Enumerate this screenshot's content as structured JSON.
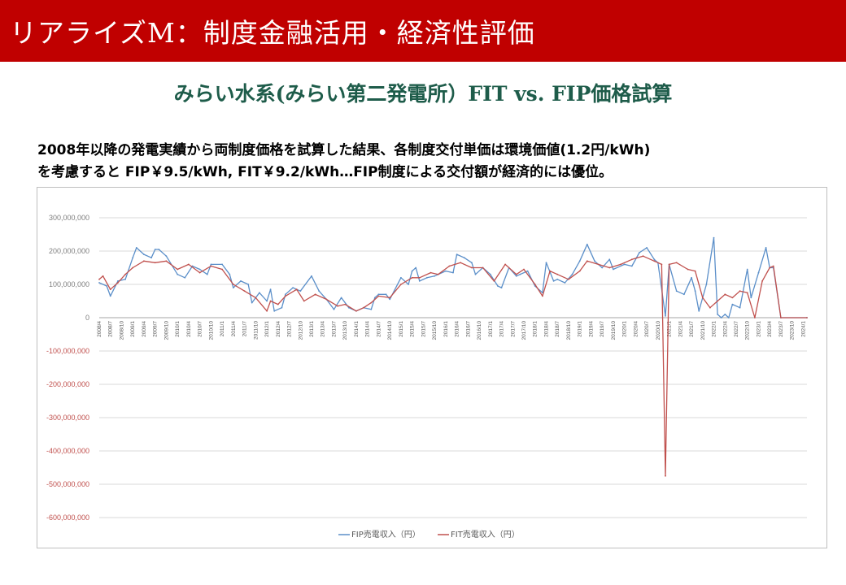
{
  "header": {
    "title": "リアライズM：制度金融活用・経済性評価"
  },
  "subtitle": "みらい水系(みらい第二発電所）FIT vs. FIP価格試算",
  "description": {
    "line1": "2008年以降の発電実績から両制度価格を試算した結果、各制度交付単価は環境価値(1.2円/kWh)",
    "line2": "を考慮すると FIP￥9.5/kWh, FIT￥9.2/kWh…FIP制度による交付額が経済的には優位。"
  },
  "colors": {
    "header_bg": "#c00000",
    "subtitle": "#1e5c4a",
    "fip": "#5b8fc9",
    "fit": "#c0504d",
    "negative_tick": "#c0504d",
    "positive_tick": "#7f7f7f"
  },
  "chart_data": {
    "type": "line",
    "title": "",
    "xlabel": "",
    "ylabel": "",
    "ylim": [
      -600000000,
      300000000
    ],
    "yticks": [
      300000000,
      200000000,
      100000000,
      0,
      -100000000,
      -200000000,
      -300000000,
      -400000000,
      -500000000,
      -600000000
    ],
    "ytick_labels": [
      "300,000,000",
      "200,000,000",
      "100,000,000",
      "0",
      "-100,000,000",
      "-200,000,000",
      "-300,000,000",
      "-400,000,000",
      "-500,000,000",
      "-600,000,000"
    ],
    "x_start": "2008/4",
    "x_end": "2024/2",
    "xtick_labels": [
      "2008/4",
      "2008/7",
      "2008/10",
      "2009/1",
      "2009/4",
      "2009/7",
      "2009/10",
      "2010/1",
      "2010/4",
      "2010/7",
      "2010/10",
      "2011/1",
      "2011/4",
      "2011/7",
      "2011/10",
      "2012/1",
      "2012/4",
      "2012/7",
      "2012/10",
      "2013/1",
      "2013/4",
      "2013/7",
      "2013/10",
      "2014/1",
      "2014/4",
      "2014/7",
      "2014/10",
      "2015/1",
      "2015/4",
      "2015/7",
      "2015/10",
      "2016/1",
      "2016/4",
      "2016/7",
      "2016/10",
      "2017/1",
      "2017/4",
      "2017/7",
      "2017/10",
      "2018/1",
      "2018/4",
      "2018/7",
      "2018/10",
      "2019/1",
      "2019/4",
      "2019/7",
      "2019/10",
      "2020/1",
      "2020/4",
      "2020/7",
      "2020/10",
      "2021/1",
      "2021/4",
      "2021/7",
      "2021/10",
      "2022/1",
      "2022/4",
      "2022/7",
      "2022/10",
      "2023/1",
      "2023/4",
      "2023/7",
      "2023/10",
      "2024/1"
    ],
    "grid": true,
    "legend": "bottom",
    "series": [
      {
        "name": "FIP売電収入（円）",
        "color": "#5b8fc9",
        "points": [
          [
            "2008/4",
            105000000
          ],
          [
            "2008/6",
            95000000
          ],
          [
            "2008/7",
            65000000
          ],
          [
            "2008/9",
            110000000
          ],
          [
            "2008/11",
            115000000
          ],
          [
            "2009/1",
            180000000
          ],
          [
            "2009/2",
            210000000
          ],
          [
            "2009/4",
            190000000
          ],
          [
            "2009/6",
            180000000
          ],
          [
            "2009/7",
            205000000
          ],
          [
            "2009/8",
            205000000
          ],
          [
            "2009/10",
            185000000
          ],
          [
            "2010/1",
            130000000
          ],
          [
            "2010/3",
            120000000
          ],
          [
            "2010/5",
            155000000
          ],
          [
            "2010/7",
            145000000
          ],
          [
            "2010/9",
            130000000
          ],
          [
            "2010/10",
            160000000
          ],
          [
            "2011/1",
            160000000
          ],
          [
            "2011/3",
            130000000
          ],
          [
            "2011/4",
            90000000
          ],
          [
            "2011/6",
            110000000
          ],
          [
            "2011/8",
            100000000
          ],
          [
            "2011/9",
            45000000
          ],
          [
            "2011/11",
            75000000
          ],
          [
            "2012/1",
            50000000
          ],
          [
            "2012/2",
            85000000
          ],
          [
            "2012/3",
            20000000
          ],
          [
            "2012/5",
            30000000
          ],
          [
            "2012/6",
            70000000
          ],
          [
            "2012/8",
            90000000
          ],
          [
            "2012/10",
            80000000
          ],
          [
            "2013/1",
            125000000
          ],
          [
            "2013/3",
            80000000
          ],
          [
            "2013/5",
            55000000
          ],
          [
            "2013/7",
            25000000
          ],
          [
            "2013/9",
            60000000
          ],
          [
            "2013/11",
            30000000
          ],
          [
            "2014/1",
            20000000
          ],
          [
            "2014/3",
            30000000
          ],
          [
            "2014/5",
            25000000
          ],
          [
            "2014/6",
            60000000
          ],
          [
            "2014/7",
            70000000
          ],
          [
            "2014/9",
            70000000
          ],
          [
            "2014/10",
            55000000
          ],
          [
            "2015/1",
            120000000
          ],
          [
            "2015/3",
            100000000
          ],
          [
            "2015/4",
            140000000
          ],
          [
            "2015/5",
            150000000
          ],
          [
            "2015/6",
            110000000
          ],
          [
            "2015/8",
            120000000
          ],
          [
            "2015/10",
            125000000
          ],
          [
            "2016/1",
            140000000
          ],
          [
            "2016/3",
            135000000
          ],
          [
            "2016/4",
            190000000
          ],
          [
            "2016/6",
            180000000
          ],
          [
            "2016/8",
            165000000
          ],
          [
            "2016/9",
            130000000
          ],
          [
            "2016/11",
            150000000
          ],
          [
            "2017/1",
            130000000
          ],
          [
            "2017/3",
            95000000
          ],
          [
            "2017/4",
            90000000
          ],
          [
            "2017/6",
            150000000
          ],
          [
            "2017/8",
            125000000
          ],
          [
            "2017/9",
            130000000
          ],
          [
            "2017/11",
            140000000
          ],
          [
            "2018/1",
            95000000
          ],
          [
            "2018/3",
            75000000
          ],
          [
            "2018/4",
            165000000
          ],
          [
            "2018/6",
            110000000
          ],
          [
            "2018/7",
            115000000
          ],
          [
            "2018/9",
            105000000
          ],
          [
            "2018/11",
            130000000
          ],
          [
            "2019/1",
            170000000
          ],
          [
            "2019/3",
            220000000
          ],
          [
            "2019/5",
            170000000
          ],
          [
            "2019/7",
            150000000
          ],
          [
            "2019/9",
            175000000
          ],
          [
            "2019/10",
            145000000
          ],
          [
            "2020/1",
            160000000
          ],
          [
            "2020/3",
            155000000
          ],
          [
            "2020/5",
            195000000
          ],
          [
            "2020/7",
            210000000
          ],
          [
            "2020/9",
            175000000
          ],
          [
            "2020/10",
            165000000
          ],
          [
            "2020/12",
            5000000
          ],
          [
            "2021/1",
            160000000
          ],
          [
            "2021/3",
            80000000
          ],
          [
            "2021/5",
            70000000
          ],
          [
            "2021/7",
            120000000
          ],
          [
            "2021/8",
            80000000
          ],
          [
            "2021/9",
            20000000
          ],
          [
            "2021/11",
            100000000
          ],
          [
            "2022/1",
            240000000
          ],
          [
            "2022/2",
            10000000
          ],
          [
            "2022/3",
            0
          ],
          [
            "2022/4",
            10000000
          ],
          [
            "2022/5",
            0
          ],
          [
            "2022/6",
            40000000
          ],
          [
            "2022/8",
            30000000
          ],
          [
            "2022/10",
            145000000
          ],
          [
            "2022/11",
            60000000
          ],
          [
            "2023/1",
            135000000
          ],
          [
            "2023/3",
            210000000
          ],
          [
            "2023/4",
            150000000
          ],
          [
            "2023/5",
            150000000
          ],
          [
            "2023/7",
            0
          ],
          [
            "2024/2",
            0
          ]
        ]
      },
      {
        "name": "FIT売電収入（円）",
        "color": "#c0504d",
        "points": [
          [
            "2008/4",
            115000000
          ],
          [
            "2008/5",
            125000000
          ],
          [
            "2008/7",
            85000000
          ],
          [
            "2008/9",
            105000000
          ],
          [
            "2008/11",
            130000000
          ],
          [
            "2009/1",
            150000000
          ],
          [
            "2009/4",
            170000000
          ],
          [
            "2009/7",
            165000000
          ],
          [
            "2009/10",
            170000000
          ],
          [
            "2010/1",
            145000000
          ],
          [
            "2010/4",
            160000000
          ],
          [
            "2010/7",
            135000000
          ],
          [
            "2010/10",
            155000000
          ],
          [
            "2011/1",
            145000000
          ],
          [
            "2011/4",
            100000000
          ],
          [
            "2011/7",
            80000000
          ],
          [
            "2011/10",
            60000000
          ],
          [
            "2012/1",
            20000000
          ],
          [
            "2012/2",
            50000000
          ],
          [
            "2012/4",
            40000000
          ],
          [
            "2012/6",
            65000000
          ],
          [
            "2012/9",
            85000000
          ],
          [
            "2012/11",
            50000000
          ],
          [
            "2013/2",
            70000000
          ],
          [
            "2013/5",
            55000000
          ],
          [
            "2013/8",
            35000000
          ],
          [
            "2013/10",
            40000000
          ],
          [
            "2014/1",
            20000000
          ],
          [
            "2014/3",
            30000000
          ],
          [
            "2014/5",
            45000000
          ],
          [
            "2014/7",
            65000000
          ],
          [
            "2014/10",
            60000000
          ],
          [
            "2015/1",
            100000000
          ],
          [
            "2015/4",
            120000000
          ],
          [
            "2015/6",
            120000000
          ],
          [
            "2015/9",
            135000000
          ],
          [
            "2015/11",
            130000000
          ],
          [
            "2016/2",
            155000000
          ],
          [
            "2016/5",
            165000000
          ],
          [
            "2016/8",
            150000000
          ],
          [
            "2016/11",
            150000000
          ],
          [
            "2017/2",
            110000000
          ],
          [
            "2017/5",
            160000000
          ],
          [
            "2017/8",
            130000000
          ],
          [
            "2017/10",
            145000000
          ],
          [
            "2018/1",
            100000000
          ],
          [
            "2018/3",
            65000000
          ],
          [
            "2018/5",
            140000000
          ],
          [
            "2018/7",
            130000000
          ],
          [
            "2018/10",
            115000000
          ],
          [
            "2019/1",
            140000000
          ],
          [
            "2019/3",
            170000000
          ],
          [
            "2019/6",
            160000000
          ],
          [
            "2019/9",
            150000000
          ],
          [
            "2019/12",
            160000000
          ],
          [
            "2020/3",
            175000000
          ],
          [
            "2020/6",
            185000000
          ],
          [
            "2020/9",
            170000000
          ],
          [
            "2020/11",
            160000000
          ],
          [
            "2020/12",
            -475000000
          ],
          [
            "2021/1",
            160000000
          ],
          [
            "2021/3",
            165000000
          ],
          [
            "2021/6",
            145000000
          ],
          [
            "2021/8",
            140000000
          ],
          [
            "2021/10",
            60000000
          ],
          [
            "2021/12",
            30000000
          ],
          [
            "2022/2",
            50000000
          ],
          [
            "2022/4",
            70000000
          ],
          [
            "2022/6",
            60000000
          ],
          [
            "2022/8",
            80000000
          ],
          [
            "2022/10",
            75000000
          ],
          [
            "2022/12",
            0
          ],
          [
            "2023/2",
            110000000
          ],
          [
            "2023/4",
            150000000
          ],
          [
            "2023/5",
            155000000
          ],
          [
            "2023/7",
            0
          ],
          [
            "2024/2",
            0
          ]
        ]
      }
    ]
  }
}
